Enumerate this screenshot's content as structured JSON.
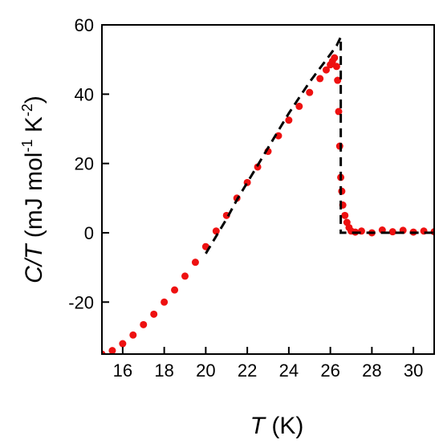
{
  "chart_data": {
    "type": "scatter",
    "title": "",
    "xlabel": {
      "symbol": "T",
      "unit": " (K)"
    },
    "ylabel": {
      "symbol": "C/T",
      "unit": " (mJ mol",
      "exp1": "-1",
      "mid": " K",
      "exp2": "-2",
      "end": ")"
    },
    "xlim": [
      15,
      31
    ],
    "ylim": [
      -35,
      60
    ],
    "x_ticks": [
      16,
      18,
      20,
      22,
      24,
      26,
      28,
      30
    ],
    "y_ticks": [
      -20,
      0,
      20,
      40,
      60
    ],
    "grid": false,
    "colors": {
      "data": "#ee1111",
      "fit": "#000000"
    },
    "series": [
      {
        "style": "markers",
        "x": [
          15.0,
          15.5,
          16.0,
          16.5,
          17.0,
          17.5,
          18.0,
          18.5,
          19.0,
          19.5,
          20.0,
          20.5,
          21.0,
          21.5,
          22.0,
          22.5,
          23.0,
          23.5,
          24.0,
          24.5,
          25.0,
          25.5,
          25.8,
          26.0,
          26.1,
          26.2,
          26.3,
          26.35,
          26.4,
          26.45,
          26.5,
          26.55,
          26.6,
          26.7,
          26.8,
          26.9,
          27.0,
          27.2,
          27.5,
          28.0,
          28.5,
          29.0,
          29.5,
          30.0,
          30.5,
          31.0
        ],
        "y": [
          -35,
          -34,
          -32,
          -29.5,
          -26.5,
          -23.5,
          -20,
          -16.5,
          -12.5,
          -8.5,
          -4,
          0.5,
          5,
          10,
          14.5,
          19,
          23.5,
          28,
          32.5,
          36.5,
          40.5,
          44.5,
          47,
          48.5,
          49.5,
          50.5,
          48,
          44,
          35,
          25,
          16,
          12,
          8,
          5,
          3,
          1.5,
          0.5,
          0.2,
          0.5,
          0,
          0.8,
          0.3,
          0.7,
          0.2,
          0.5,
          0.3
        ]
      },
      {
        "style": "dashed-line",
        "x": [
          20.0,
          20.5,
          21.0,
          21.5,
          22.0,
          22.5,
          23.0,
          23.5,
          24.0,
          24.5,
          25.0,
          25.5,
          26.0,
          26.3,
          26.5,
          26.5,
          26.6,
          31.0
        ],
        "y": [
          -6,
          -1,
          4,
          9.5,
          14.5,
          19.5,
          24.5,
          29.5,
          34.5,
          39,
          43.5,
          47.5,
          51.5,
          54,
          56.5,
          0,
          0,
          0
        ]
      }
    ]
  }
}
